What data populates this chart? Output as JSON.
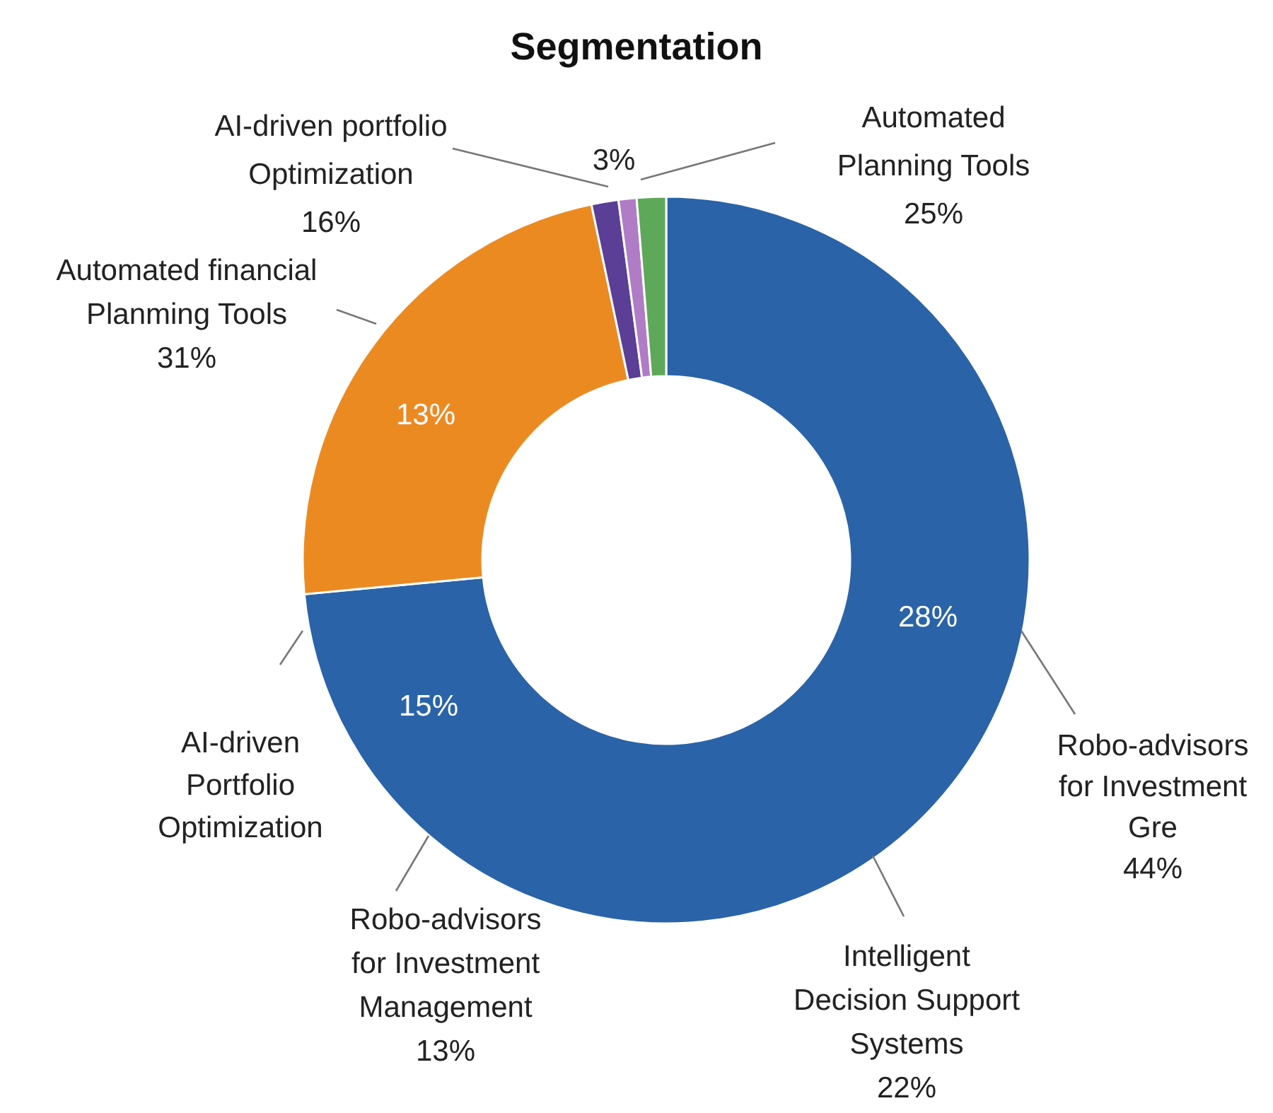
{
  "chart_data": {
    "type": "donut",
    "title": "Segmentation",
    "categories": [
      "Robo-advisors for Investment Gre",
      "Automated financial Planming Tools",
      "AI-driven portfolio Optimization",
      null,
      null
    ],
    "values": [
      73.5,
      23.2,
      1.2,
      0.8,
      1.3
    ],
    "colors": [
      "#2a63a8",
      "#ec8a22",
      "#5b3e96",
      "#b07cc6",
      "#5ea85a"
    ],
    "annotations": [
      "AI-driven Portfolio Optimization",
      "Robo-advisors for Investment Management 13%",
      "Intelligent Decision Support Systems 22%",
      "28%",
      "15%",
      "13%",
      "44%",
      "31%",
      "16%",
      "3%",
      "Automated Planning Tools 25%"
    ],
    "legend": false
  }
}
